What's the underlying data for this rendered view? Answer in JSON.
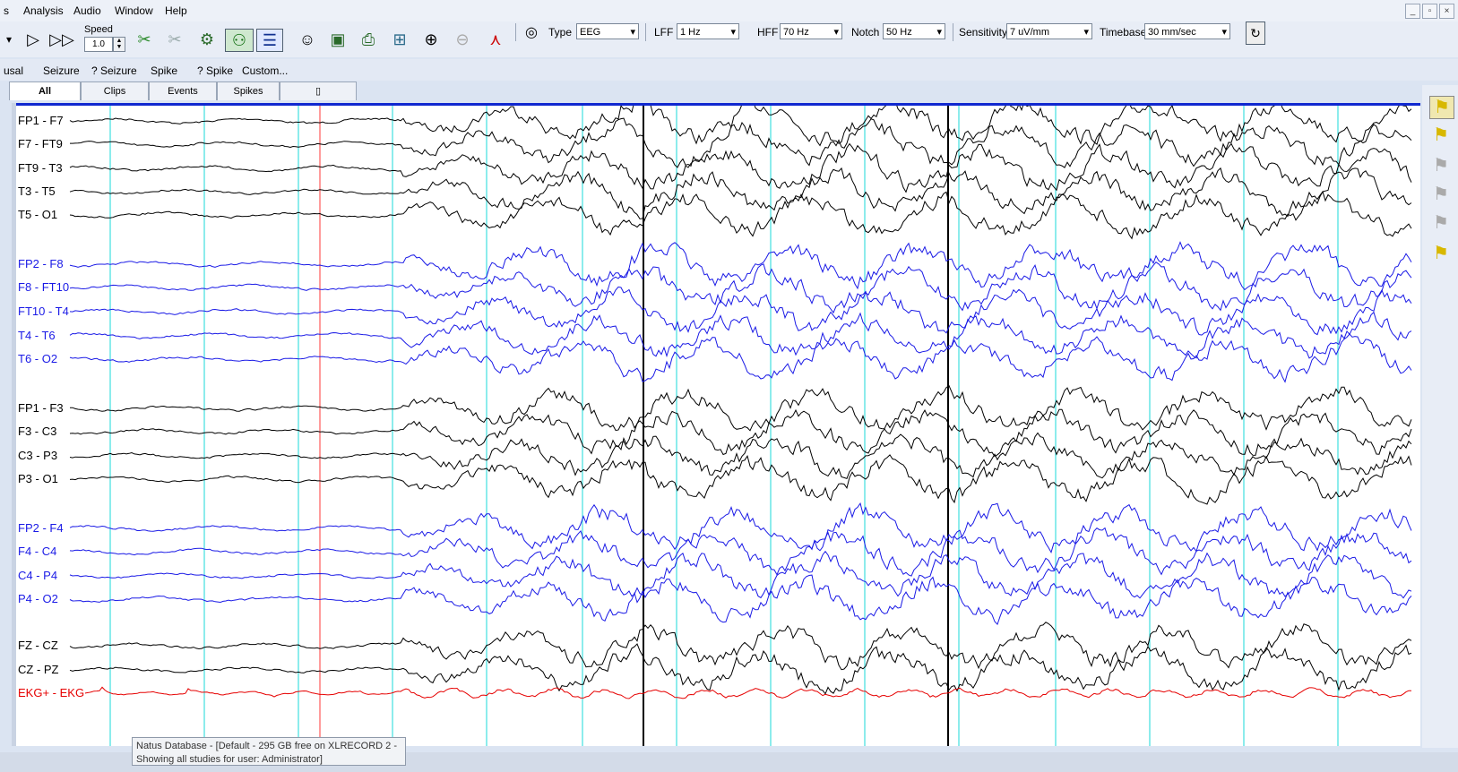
{
  "menu": [
    "s",
    "Analysis",
    "Audio",
    "Window",
    "Help"
  ],
  "window_controls": [
    "_",
    "▫",
    "×"
  ],
  "toolbar": {
    "speed_label": "Speed",
    "speed_value": "1.0",
    "type_label": "Type",
    "type_value": "EEG",
    "lff_label": "LFF",
    "lff_value": "1 Hz",
    "hff_label": "HFF",
    "hff_value": "70 Hz",
    "notch_label": "Notch",
    "notch_value": "50 Hz",
    "sensitivity_label": "Sensitivity",
    "sensitivity_value": "7 uV/mm",
    "timebase_label": "Timebase",
    "timebase_value": "30 mm/sec"
  },
  "events": [
    "usal",
    "Seizure",
    "? Seizure",
    "Spike",
    "? Spike",
    "Custom..."
  ],
  "tabs": [
    "All",
    "Clips",
    "Events",
    "Spikes"
  ],
  "channels": [
    {
      "label": "FP1 - F7",
      "color": "#000000"
    },
    {
      "label": "F7 - FT9",
      "color": "#000000"
    },
    {
      "label": "FT9 - T3",
      "color": "#000000"
    },
    {
      "label": "T3 - T5",
      "color": "#000000"
    },
    {
      "label": "T5 - O1",
      "color": "#000000"
    },
    {
      "label": "FP2 - F8",
      "color": "#1a1ae6"
    },
    {
      "label": "F8 - FT10",
      "color": "#1a1ae6"
    },
    {
      "label": "FT10 - T4",
      "color": "#1a1ae6"
    },
    {
      "label": "T4 - T6",
      "color": "#1a1ae6"
    },
    {
      "label": "T6 - O2",
      "color": "#1a1ae6"
    },
    {
      "label": "FP1 - F3",
      "color": "#000000"
    },
    {
      "label": "F3 - C3",
      "color": "#000000"
    },
    {
      "label": "C3 - P3",
      "color": "#000000"
    },
    {
      "label": "P3 - O1",
      "color": "#000000"
    },
    {
      "label": "FP2 - F4",
      "color": "#1a1ae6"
    },
    {
      "label": "F4 - C4",
      "color": "#1a1ae6"
    },
    {
      "label": "C4 - P4",
      "color": "#1a1ae6"
    },
    {
      "label": "P4 - O2",
      "color": "#1a1ae6"
    },
    {
      "label": "FZ - CZ",
      "color": "#000000"
    },
    {
      "label": "CZ - PZ",
      "color": "#000000"
    },
    {
      "label": "EKG+ - EKG",
      "color": "#e60000"
    }
  ],
  "status": {
    "line1": "Natus Database - [Default - 295 GB free on XLRECORD 2 -",
    "line2": "Showing all studies for user: Administrator]"
  },
  "colors": {
    "accent": "#1028d0",
    "second_marker": "#40e0e0",
    "event_marker": "#ff5a5a",
    "eeg_left": "#000000",
    "eeg_right": "#1a1ae6",
    "ekg": "#e60000"
  }
}
